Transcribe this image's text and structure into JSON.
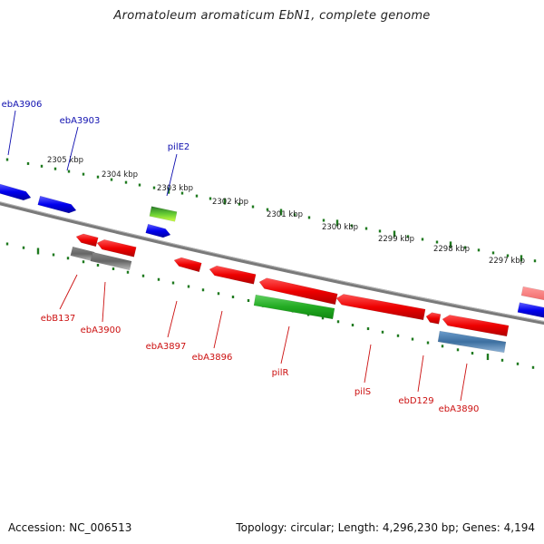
{
  "title": "Aromatoleum aromaticum EbN1, complete genome",
  "footer": {
    "accession": "Accession: NC_006513",
    "summary": "Topology: circular; Length: 4,296,230 bp; Genes: 4,194"
  },
  "colors": {
    "tick": "#1f7a1f",
    "plus_label": "#1010b0",
    "minus_label": "#cc1010",
    "backbone": "#7a7a7a"
  },
  "scale": {
    "labels": [
      "2305 kbp",
      "2304 kbp",
      "2303 kbp",
      "2302 kbp",
      "2301 kbp",
      "2300 kbp",
      "2299 kbp",
      "2298 kbp",
      "2297 kbp"
    ]
  },
  "genes": {
    "plus": [
      {
        "label": "ebA3906",
        "color": "blue"
      },
      {
        "label": "ebA3903",
        "color": "blue"
      },
      {
        "label": "pilE2",
        "color": "blue"
      },
      {
        "label": "",
        "color": "green"
      },
      {
        "label": "",
        "color": "blue"
      },
      {
        "label": "",
        "color": "pink"
      }
    ],
    "minus": [
      {
        "label": "ebB137",
        "color": "red"
      },
      {
        "label": "",
        "color": "grey"
      },
      {
        "label": "ebA3900",
        "color": "red"
      },
      {
        "label": "ebA3897",
        "color": "red"
      },
      {
        "label": "ebA3896",
        "color": "red"
      },
      {
        "label": "pilR",
        "color": "green"
      },
      {
        "label": "",
        "color": "red"
      },
      {
        "label": "pilS",
        "color": "red"
      },
      {
        "label": "ebD129",
        "color": "red"
      },
      {
        "label": "ebA3890",
        "color": "red"
      },
      {
        "label": "",
        "color": "steelblue"
      }
    ]
  }
}
